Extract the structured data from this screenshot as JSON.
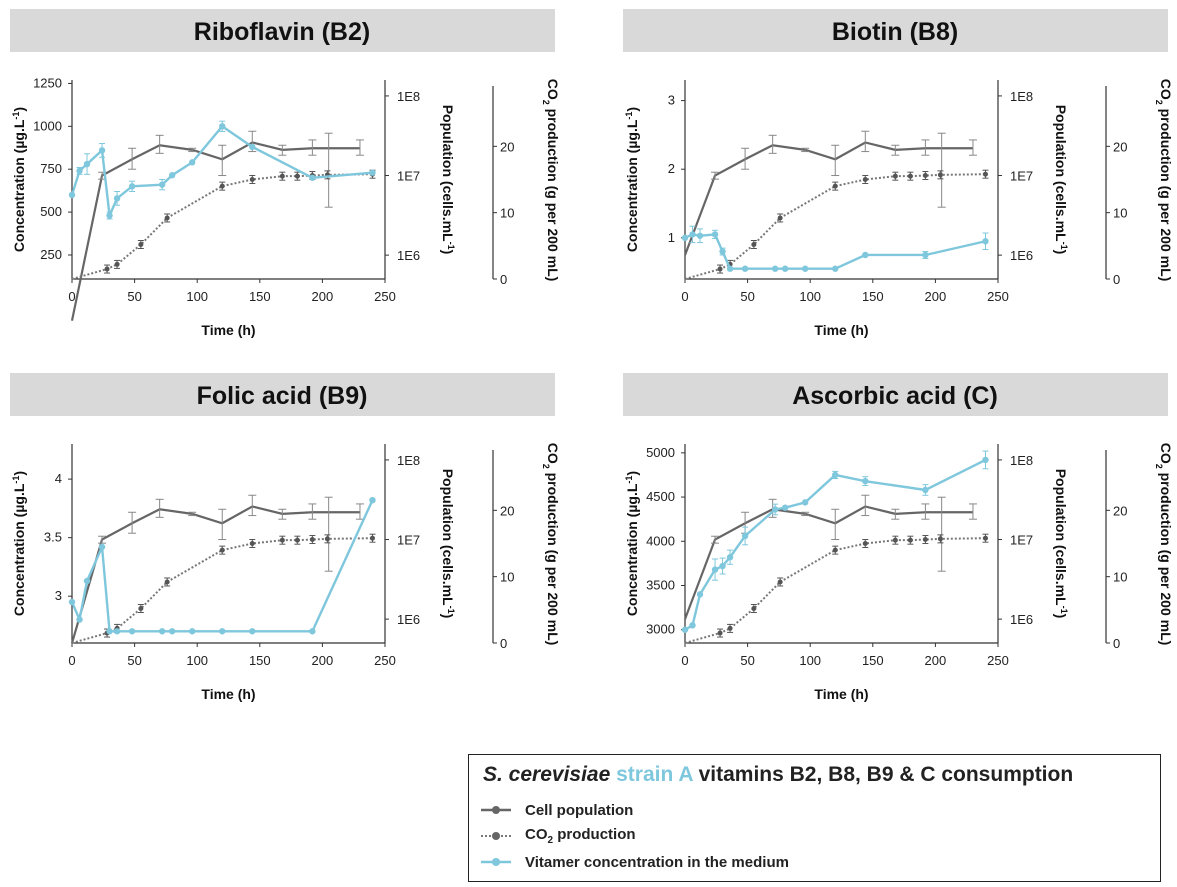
{
  "colors": {
    "cell": "#666666",
    "co2": "#777777",
    "vitamer": "#7ec7dc",
    "header_bg": "#d9d9d9"
  },
  "common": {
    "xlabel": "Time (h)",
    "x_ticks": [
      0,
      50,
      100,
      150,
      200,
      250
    ],
    "pop_label": "Population (cells.mL-1)",
    "pop_label_main": "Population (cells.mL",
    "pop_label_sup": "-1",
    "pop_label_end": ")",
    "pop_ticks": [
      "1E6",
      "1E7",
      "1E8"
    ],
    "co2_label_pre": "CO",
    "co2_label_sub": "2",
    "co2_label_post": " production (g per 200 mL)",
    "co2_ticks": [
      0,
      10,
      20
    ],
    "ylabel_main": "Concentration (µg.L",
    "ylabel_sup": "-1",
    "ylabel_end": ")"
  },
  "legend": {
    "species": "S. cerevisiae",
    "strain": "strain A",
    "rest": "vitamins B2, B8, B9 & C consumption",
    "items": {
      "cell": "Cell population",
      "co2_pre": "CO",
      "co2_sub": "2",
      "co2_post": " production",
      "vitamer": "Vitamer concentration in the medium"
    }
  },
  "chart_data": [
    {
      "type": "line",
      "title": "Riboflavin (B2)",
      "xlim": [
        0,
        250
      ],
      "ylim": [
        110,
        1270
      ],
      "y_ticks": [
        250,
        500,
        750,
        1000,
        1250
      ],
      "pop_log_range": [
        5.7,
        8.2
      ],
      "co2_range": [
        0,
        30
      ],
      "series": [
        {
          "name": "Cell population",
          "axis": "population",
          "x": [
            0,
            24,
            48,
            70,
            96,
            120,
            144,
            168,
            192,
            230
          ],
          "y": [
            150000.0,
            10000000.0,
            16000000.0,
            24000000.0,
            21000000.0,
            16000000.0,
            26000000.0,
            21000000.0,
            22000000.0,
            22000000.0
          ],
          "err_up": [
            0,
            1000000.0,
            6000000.0,
            8000000.0,
            1000000.0,
            8000000.0,
            10000000.0,
            3000000.0,
            6000000.0,
            6000000.0
          ],
          "err_down": [
            0,
            1000000.0,
            4000000.0,
            5000000.0,
            1000000.0,
            6000000.0,
            6000000.0,
            3000000.0,
            4000000.0,
            4000000.0
          ],
          "extra_err": [
            {
              "x": 205,
              "y": 16000000.0,
              "up": 18000000.0,
              "down": 12000000.0
            }
          ]
        },
        {
          "name": "CO2 production",
          "axis": "co2",
          "x": [
            0,
            28,
            36,
            55,
            76,
            120,
            144,
            168,
            180,
            192,
            204,
            240
          ],
          "y": [
            0,
            1.5,
            2.2,
            5.2,
            9.2,
            14,
            15,
            15.5,
            15.5,
            15.6,
            15.7,
            15.8
          ]
        },
        {
          "name": "Vitamer concentration in the medium",
          "axis": "concentration",
          "x": [
            0,
            6,
            12,
            24,
            30,
            36,
            48,
            72,
            80,
            96,
            120,
            144,
            192,
            240
          ],
          "y": [
            600,
            740,
            780,
            860,
            480,
            580,
            650,
            660,
            715,
            790,
            1000,
            880,
            700,
            730
          ],
          "err": [
            0,
            20,
            60,
            40,
            20,
            40,
            30,
            30,
            0,
            0,
            30,
            0,
            0,
            0
          ]
        }
      ]
    },
    {
      "type": "line",
      "title": "Biotin (B8)",
      "xlim": [
        0,
        250
      ],
      "ylim": [
        0.4,
        3.3
      ],
      "y_ticks": [
        1,
        2,
        3
      ],
      "pop_log_range": [
        5.7,
        8.2
      ],
      "co2_range": [
        0,
        30
      ],
      "series": [
        {
          "name": "Cell population",
          "axis": "population",
          "x": [
            0,
            24,
            48,
            70,
            96,
            120,
            144,
            168,
            192,
            230
          ],
          "y": [
            1000000.0,
            10000000.0,
            16000000.0,
            24000000.0,
            21000000.0,
            16000000.0,
            26000000.0,
            21000000.0,
            22000000.0,
            22000000.0
          ],
          "err_up": [
            0,
            1000000.0,
            6000000.0,
            8000000.0,
            1000000.0,
            8000000.0,
            10000000.0,
            3000000.0,
            6000000.0,
            6000000.0
          ],
          "err_down": [
            0,
            1000000.0,
            4000000.0,
            5000000.0,
            1000000.0,
            6000000.0,
            6000000.0,
            3000000.0,
            4000000.0,
            4000000.0
          ],
          "extra_err": [
            {
              "x": 205,
              "y": 16000000.0,
              "up": 18000000.0,
              "down": 12000000.0
            }
          ]
        },
        {
          "name": "CO2 production",
          "axis": "co2",
          "x": [
            0,
            28,
            36,
            55,
            76,
            120,
            144,
            168,
            180,
            192,
            204,
            240
          ],
          "y": [
            0,
            1.5,
            2.2,
            5.2,
            9.2,
            14,
            15,
            15.5,
            15.5,
            15.6,
            15.7,
            15.8
          ]
        },
        {
          "name": "Vitamer concentration in the medium",
          "axis": "concentration",
          "x": [
            0,
            6,
            12,
            24,
            30,
            36,
            48,
            72,
            80,
            96,
            120,
            144,
            192,
            240
          ],
          "y": [
            1.0,
            1.05,
            1.03,
            1.05,
            0.8,
            0.55,
            0.55,
            0.55,
            0.55,
            0.55,
            0.55,
            0.75,
            0.75,
            0.95
          ],
          "err": [
            0,
            0.12,
            0.1,
            0.06,
            0.05,
            0,
            0,
            0,
            0,
            0,
            0,
            0,
            0.05,
            0.12
          ]
        }
      ]
    },
    {
      "type": "line",
      "title": "Folic acid (B9)",
      "xlim": [
        0,
        250
      ],
      "ylim": [
        2.6,
        4.3
      ],
      "y_ticks": [
        3,
        3.5,
        4
      ],
      "pop_log_range": [
        5.7,
        8.2
      ],
      "co2_range": [
        0,
        30
      ],
      "series": [
        {
          "name": "Cell population",
          "axis": "population",
          "x": [
            0,
            24,
            48,
            70,
            96,
            120,
            144,
            168,
            192,
            230
          ],
          "y": [
            500000.0,
            10000000.0,
            16000000.0,
            24000000.0,
            21000000.0,
            16000000.0,
            26000000.0,
            21000000.0,
            22000000.0,
            22000000.0
          ],
          "err_up": [
            0,
            1000000.0,
            6000000.0,
            8000000.0,
            1000000.0,
            8000000.0,
            10000000.0,
            3000000.0,
            6000000.0,
            6000000.0
          ],
          "err_down": [
            0,
            1000000.0,
            4000000.0,
            5000000.0,
            1000000.0,
            6000000.0,
            6000000.0,
            3000000.0,
            4000000.0,
            4000000.0
          ],
          "extra_err": [
            {
              "x": 205,
              "y": 16000000.0,
              "up": 18000000.0,
              "down": 12000000.0
            }
          ]
        },
        {
          "name": "CO2 production",
          "axis": "co2",
          "x": [
            0,
            28,
            36,
            55,
            76,
            120,
            144,
            168,
            180,
            192,
            204,
            240
          ],
          "y": [
            0,
            1.5,
            2.2,
            5.2,
            9.2,
            14,
            15,
            15.5,
            15.5,
            15.6,
            15.7,
            15.8
          ]
        },
        {
          "name": "Vitamer concentration in the medium",
          "axis": "concentration",
          "x": [
            0,
            6,
            12,
            24,
            30,
            36,
            48,
            72,
            80,
            96,
            120,
            144,
            192,
            240
          ],
          "y": [
            2.95,
            2.8,
            3.13,
            3.42,
            2.7,
            2.7,
            2.7,
            2.7,
            2.7,
            2.7,
            2.7,
            2.7,
            2.7,
            3.82
          ],
          "err": [
            0,
            0,
            0,
            0,
            0,
            0,
            0,
            0,
            0,
            0,
            0,
            0,
            0,
            0
          ]
        }
      ]
    },
    {
      "type": "line",
      "title": "Ascorbic acid (C)",
      "xlim": [
        0,
        250
      ],
      "ylim": [
        2850,
        5100
      ],
      "y_ticks": [
        3000,
        3500,
        4000,
        4500,
        5000
      ],
      "pop_log_range": [
        5.7,
        8.2
      ],
      "co2_range": [
        0,
        30
      ],
      "series": [
        {
          "name": "Cell population",
          "axis": "population",
          "x": [
            0,
            24,
            48,
            70,
            96,
            120,
            144,
            168,
            192,
            230
          ],
          "y": [
            1000000.0,
            10000000.0,
            16000000.0,
            24000000.0,
            21000000.0,
            16000000.0,
            26000000.0,
            21000000.0,
            22000000.0,
            22000000.0
          ],
          "err_up": [
            0,
            1000000.0,
            6000000.0,
            8000000.0,
            1000000.0,
            8000000.0,
            10000000.0,
            3000000.0,
            6000000.0,
            6000000.0
          ],
          "err_down": [
            0,
            1000000.0,
            4000000.0,
            5000000.0,
            1000000.0,
            6000000.0,
            6000000.0,
            3000000.0,
            4000000.0,
            4000000.0
          ],
          "extra_err": [
            {
              "x": 205,
              "y": 16000000.0,
              "up": 18000000.0,
              "down": 12000000.0
            }
          ]
        },
        {
          "name": "CO2 production",
          "axis": "co2",
          "x": [
            0,
            28,
            36,
            55,
            76,
            120,
            144,
            168,
            180,
            192,
            204,
            240
          ],
          "y": [
            0,
            1.5,
            2.2,
            5.2,
            9.2,
            14,
            15,
            15.5,
            15.5,
            15.6,
            15.7,
            15.8
          ]
        },
        {
          "name": "Vitamer concentration in the medium",
          "axis": "concentration",
          "x": [
            0,
            6,
            12,
            24,
            30,
            36,
            48,
            72,
            80,
            96,
            120,
            144,
            192,
            240
          ],
          "y": [
            3000,
            3050,
            3400,
            3680,
            3720,
            3820,
            4060,
            4360,
            4380,
            4440,
            4750,
            4680,
            4580,
            4920
          ],
          "err": [
            0,
            0,
            0,
            120,
            90,
            80,
            100,
            60,
            0,
            0,
            40,
            50,
            60,
            100
          ]
        }
      ]
    }
  ]
}
